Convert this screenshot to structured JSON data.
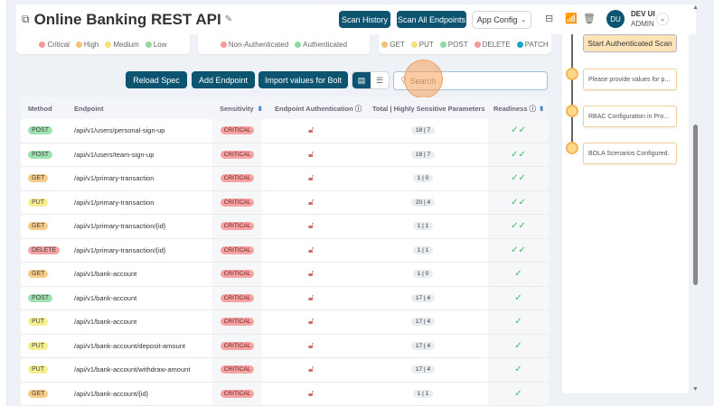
{
  "header": {
    "title": "Online Banking REST API",
    "scan_history": "Scan History",
    "scan_all": "Scan All Endpoints",
    "app_config": "App Config",
    "user_initials": "DU",
    "user_name": "DEV UI",
    "user_role": "ADMIN"
  },
  "legends": {
    "sensitivity": [
      {
        "label": "Critical",
        "color": "#f29a9a"
      },
      {
        "label": "High",
        "color": "#f5c27a"
      },
      {
        "label": "Medium",
        "color": "#f5e07a"
      },
      {
        "label": "Low",
        "color": "#8fd9a3"
      }
    ],
    "auth": [
      {
        "label": "Non-Authenticated",
        "color": "#f29a9a"
      },
      {
        "label": "Authenticated",
        "color": "#8fd9a3"
      }
    ],
    "methods": [
      {
        "label": "GET",
        "color": "#f5c27a"
      },
      {
        "label": "PUT",
        "color": "#f5e07a"
      },
      {
        "label": "POST",
        "color": "#8fd9a3"
      },
      {
        "label": "DELETE",
        "color": "#f29a9a"
      },
      {
        "label": "PATCH",
        "color": "#1aa3c8"
      }
    ]
  },
  "toolbar": {
    "reload": "Reload Spec",
    "add": "Add Endpoint",
    "import": "Import values for Bolt",
    "search_placeholder": "Search"
  },
  "table": {
    "columns": [
      "Method",
      "Endpoint",
      "Sensitivity",
      "Endpoint Authentication",
      "Total | Highly Sensitive Parameters",
      "Readiness"
    ],
    "rows": [
      {
        "method": "POST",
        "endpoint": "/api/v1/users/personal-sign-up",
        "sensitivity": "CRITICAL",
        "params": "18 | 7",
        "readiness": "double-check"
      },
      {
        "method": "POST",
        "endpoint": "/api/v1/users/team-sign-up",
        "sensitivity": "CRITICAL",
        "params": "18 | 7",
        "readiness": "double-check"
      },
      {
        "method": "GET",
        "endpoint": "/api/v1/primary-transaction",
        "sensitivity": "CRITICAL",
        "params": "1 | 0",
        "readiness": "double-check"
      },
      {
        "method": "PUT",
        "endpoint": "/api/v1/primary-transaction",
        "sensitivity": "CRITICAL",
        "params": "20 | 4",
        "readiness": "double-check"
      },
      {
        "method": "GET",
        "endpoint": "/api/v1/primary-transaction/{id}",
        "sensitivity": "CRITICAL",
        "params": "1 | 1",
        "readiness": "double-check"
      },
      {
        "method": "DELETE",
        "endpoint": "/api/v1/primary-transaction/{id}",
        "sensitivity": "CRITICAL",
        "params": "1 | 1",
        "readiness": "double-check"
      },
      {
        "method": "GET",
        "endpoint": "/api/v1/bank-account",
        "sensitivity": "CRITICAL",
        "params": "1 | 0",
        "readiness": "check"
      },
      {
        "method": "POST",
        "endpoint": "/api/v1/bank-account",
        "sensitivity": "CRITICAL",
        "params": "17 | 4",
        "readiness": "check"
      },
      {
        "method": "PUT",
        "endpoint": "/api/v1/bank-account",
        "sensitivity": "CRITICAL",
        "params": "17 | 4",
        "readiness": "check"
      },
      {
        "method": "PUT",
        "endpoint": "/api/v1/bank-account/deposit-amount",
        "sensitivity": "CRITICAL",
        "params": "17 | 4",
        "readiness": "check"
      },
      {
        "method": "PUT",
        "endpoint": "/api/v1/bank-account/withdraw-amount",
        "sensitivity": "CRITICAL",
        "params": "17 | 4",
        "readiness": "check"
      },
      {
        "method": "GET",
        "endpoint": "/api/v1/bank-account/{id}",
        "sensitivity": "CRITICAL",
        "params": "1 | 1",
        "readiness": "check"
      }
    ]
  },
  "method_colors": {
    "GET": "#f7cc8a",
    "POST": "#9ee2b0",
    "PUT": "#f7ef8f",
    "DELETE": "#f5a3a3"
  },
  "timeline": {
    "start_scan": "Start Authenticated Scan",
    "items": [
      "Please provide values for p...",
      "RBAC Configuration in Pro...",
      "BOLA Scenarios Configured."
    ]
  }
}
